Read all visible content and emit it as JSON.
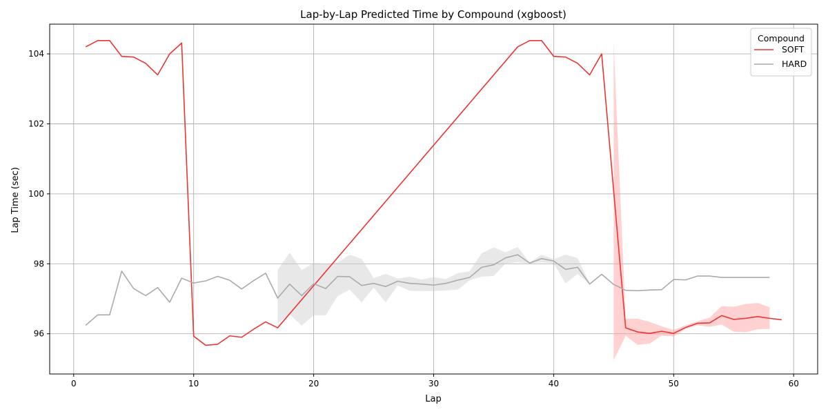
{
  "chart_data": {
    "type": "line",
    "title": "Lap-by-Lap Predicted Time by Compound (xgboost)",
    "xlabel": "Lap",
    "ylabel": "Lap Time (sec)",
    "xlim": [
      -2,
      62
    ],
    "ylim": [
      94.85,
      104.85
    ],
    "xticks": [
      0,
      10,
      20,
      30,
      40,
      50,
      60
    ],
    "yticks": [
      96,
      98,
      100,
      102,
      104
    ],
    "grid": true,
    "legend": {
      "title": "Compound",
      "position": "top-right"
    },
    "series": [
      {
        "name": "SOFT",
        "color": "#ee3333",
        "band_color": "#ff9999",
        "points": [
          [
            1,
            104.2
          ],
          [
            2,
            104.38
          ],
          [
            3,
            104.38
          ],
          [
            4,
            103.93
          ],
          [
            5,
            103.91
          ],
          [
            6,
            103.73
          ],
          [
            7,
            103.4
          ],
          [
            8,
            104.0
          ],
          [
            9,
            104.31
          ],
          [
            10,
            95.93
          ],
          [
            11,
            95.67
          ],
          [
            12,
            95.7
          ],
          [
            13,
            95.94
          ],
          [
            14,
            95.9
          ],
          [
            15,
            96.13
          ],
          [
            16,
            96.34
          ],
          [
            17,
            96.17
          ],
          [
            37,
            104.2
          ],
          [
            38,
            104.38
          ],
          [
            39,
            104.38
          ],
          [
            40,
            103.93
          ],
          [
            41,
            103.91
          ],
          [
            42,
            103.73
          ],
          [
            43,
            103.4
          ],
          [
            44,
            104.0
          ],
          [
            46,
            96.17
          ],
          [
            47,
            96.05
          ],
          [
            48,
            96.01
          ],
          [
            49,
            96.07
          ],
          [
            50,
            96.01
          ],
          [
            51,
            96.18
          ],
          [
            52,
            96.3
          ],
          [
            53,
            96.31
          ],
          [
            54,
            96.52
          ],
          [
            55,
            96.41
          ],
          [
            56,
            96.44
          ],
          [
            57,
            96.49
          ],
          [
            58,
            96.44
          ],
          [
            59,
            96.4
          ]
        ],
        "band": [
          [
            45,
            95.25,
            104.31
          ],
          [
            46,
            95.94,
            96.43
          ],
          [
            47,
            95.68,
            96.43
          ],
          [
            48,
            95.72,
            96.34
          ],
          [
            49,
            95.95,
            96.21
          ],
          [
            50,
            95.92,
            96.11
          ],
          [
            51,
            96.14,
            96.24
          ],
          [
            52,
            96.24,
            96.36
          ],
          [
            53,
            96.2,
            96.46
          ],
          [
            54,
            96.26,
            96.79
          ],
          [
            55,
            96.06,
            96.77
          ],
          [
            56,
            96.04,
            96.85
          ],
          [
            57,
            96.13,
            96.88
          ],
          [
            58,
            96.14,
            96.76
          ]
        ]
      },
      {
        "name": "HARD",
        "color": "#aaaaaa",
        "band_color": "#cccccc",
        "points": [
          [
            1,
            96.24
          ],
          [
            2,
            96.54
          ],
          [
            3,
            96.54
          ],
          [
            4,
            97.79
          ],
          [
            5,
            97.29
          ],
          [
            6,
            97.09
          ],
          [
            7,
            97.32
          ],
          [
            8,
            96.9
          ],
          [
            9,
            97.59
          ],
          [
            10,
            97.45
          ],
          [
            11,
            97.51
          ],
          [
            12,
            97.64
          ],
          [
            13,
            97.53
          ],
          [
            14,
            97.28
          ],
          [
            15,
            97.52
          ],
          [
            16,
            97.73
          ],
          [
            17,
            97.02
          ],
          [
            18,
            97.42
          ],
          [
            19,
            97.09
          ],
          [
            20,
            97.43
          ],
          [
            21,
            97.29
          ],
          [
            22,
            97.64
          ],
          [
            23,
            97.63
          ],
          [
            24,
            97.38
          ],
          [
            25,
            97.44
          ],
          [
            26,
            97.35
          ],
          [
            27,
            97.5
          ],
          [
            28,
            97.44
          ],
          [
            29,
            97.42
          ],
          [
            30,
            97.39
          ],
          [
            31,
            97.44
          ],
          [
            32,
            97.53
          ],
          [
            33,
            97.61
          ],
          [
            34,
            97.9
          ],
          [
            35,
            97.97
          ],
          [
            36,
            98.17
          ],
          [
            37,
            98.26
          ],
          [
            38,
            98.02
          ],
          [
            39,
            98.15
          ],
          [
            40,
            98.08
          ],
          [
            41,
            97.84
          ],
          [
            42,
            97.9
          ],
          [
            43,
            97.42
          ],
          [
            44,
            97.7
          ],
          [
            45,
            97.41
          ],
          [
            46,
            97.24
          ],
          [
            47,
            97.23
          ],
          [
            48,
            97.25
          ],
          [
            49,
            97.26
          ],
          [
            50,
            97.55
          ],
          [
            51,
            97.54
          ],
          [
            52,
            97.65
          ],
          [
            53,
            97.65
          ],
          [
            54,
            97.61
          ],
          [
            55,
            97.61
          ],
          [
            56,
            97.61
          ],
          [
            57,
            97.61
          ],
          [
            58,
            97.61
          ]
        ],
        "band": [
          [
            17,
            96.3,
            97.82
          ],
          [
            18,
            96.55,
            98.32
          ],
          [
            19,
            96.23,
            97.82
          ],
          [
            20,
            96.53,
            98.02
          ],
          [
            21,
            96.53,
            98.0
          ],
          [
            22,
            97.08,
            98.04
          ],
          [
            23,
            97.26,
            98.26
          ],
          [
            24,
            96.9,
            98.14
          ],
          [
            25,
            97.32,
            97.59
          ],
          [
            26,
            96.9,
            97.71
          ],
          [
            27,
            97.38,
            97.58
          ],
          [
            28,
            97.23,
            97.63
          ],
          [
            29,
            97.22,
            97.55
          ],
          [
            30,
            97.22,
            97.62
          ],
          [
            31,
            97.24,
            97.56
          ],
          [
            32,
            97.26,
            97.73
          ],
          [
            33,
            97.53,
            97.79
          ],
          [
            34,
            97.63,
            98.3
          ],
          [
            35,
            97.65,
            98.47
          ],
          [
            36,
            98.01,
            98.33
          ],
          [
            37,
            98.04,
            98.48
          ],
          [
            38,
            98.01,
            98.04
          ],
          [
            39,
            98.04,
            98.26
          ],
          [
            40,
            98.01,
            98.13
          ],
          [
            41,
            97.44,
            98.26
          ],
          [
            42,
            97.71,
            98.16
          ],
          [
            43,
            97.42,
            97.44
          ]
        ]
      }
    ]
  }
}
